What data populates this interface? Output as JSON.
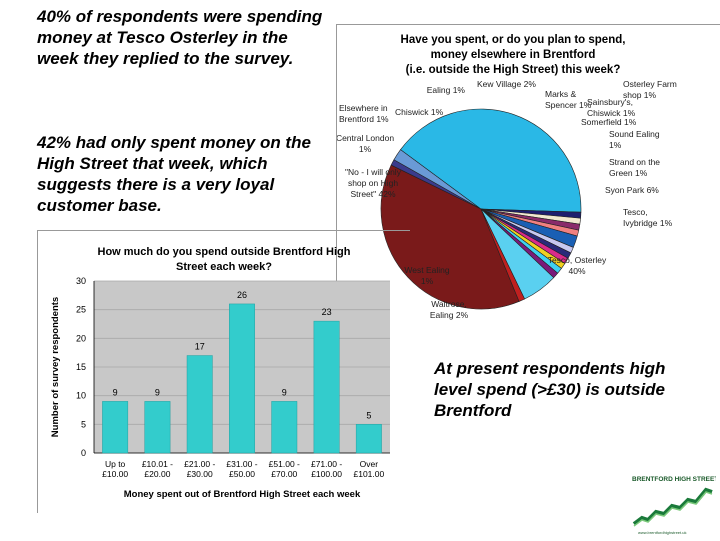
{
  "text_blocks": {
    "intro1": "40% of respondents were spending money at Tesco Osterley in the week they replied to the survey.",
    "intro2": "42% had only spent money on the High Street that week, which suggests there is a very loyal customer base.",
    "conclusion": "At present respondents high level spend (>£30) is outside Brentford"
  },
  "logo": {
    "text": "BRENTFORD HIGH STREET",
    "url": "www.brentfordhighstreet.uk"
  },
  "chart_data": [
    {
      "type": "pie",
      "title": [
        "Have you spent, or do you plan to spend,",
        "money elsewhere in Brentford",
        "(i.e. outside the High Street) this week?"
      ],
      "slices": [
        {
          "label": "Tesco, Osterley 40%",
          "value": 40,
          "color": "#7a1a1a"
        },
        {
          "label": "West Ealing 1%",
          "value": 1,
          "color": "#3b3b8c"
        },
        {
          "label": "Waitrose, Ealing 2%",
          "value": 2,
          "color": "#6a9ad6"
        },
        {
          "label": "\"No - I will only shop on High Street\" 42%",
          "value": 42,
          "color": "#2ab8e6"
        },
        {
          "label": "Central London 1%",
          "value": 1,
          "color": "#1e1e6e"
        },
        {
          "label": "Elsewhere in Brentford 1%",
          "value": 1,
          "color": "#f2e9d0"
        },
        {
          "label": "Chiswick 1%",
          "value": 1,
          "color": "#8a2b6a"
        },
        {
          "label": "Ealing 1%",
          "value": 1,
          "color": "#f08080"
        },
        {
          "label": "Kew Village 2%",
          "value": 2,
          "color": "#1a5fb4"
        },
        {
          "label": "Osterley Farm shop 1%",
          "value": 1,
          "color": "#c8c8f0"
        },
        {
          "label": "Marks & Spencer 1%",
          "value": 1,
          "color": "#2a2a7a"
        },
        {
          "label": "Sainsbury's, Chiswick 1%",
          "value": 1,
          "color": "#d92b8a"
        },
        {
          "label": "Somerfield 1%",
          "value": 1,
          "color": "#f0d020"
        },
        {
          "label": "Sound Ealing 1%",
          "value": 1,
          "color": "#40d0f0"
        },
        {
          "label": "Strand on the Green 1%",
          "value": 1,
          "color": "#7a1a7a"
        },
        {
          "label": "Syon Park 6%",
          "value": 6,
          "color": "#5ad0f0"
        },
        {
          "label": "Tesco, Ivybridge 1%",
          "value": 1,
          "color": "#c02020"
        }
      ],
      "labels": [
        {
          "lines": [
            "Ealing 1%"
          ]
        },
        {
          "lines": [
            "Kew Village 2%"
          ]
        },
        {
          "lines": [
            "Osterley Farm",
            "shop 1%"
          ]
        },
        {
          "lines": [
            "Marks &",
            "Spencer 1%"
          ]
        },
        {
          "lines": [
            "Sainsbury's,",
            "Chiswick 1%"
          ]
        },
        {
          "lines": [
            "Somerfield 1%"
          ]
        },
        {
          "lines": [
            "Elsewhere in",
            "Brentford 1%"
          ]
        },
        {
          "lines": [
            "Chiswick 1%"
          ]
        },
        {
          "lines": [
            "Central London",
            "1%"
          ]
        },
        {
          "lines": [
            "\"No - I will only",
            "shop on High",
            "Street\" 42%"
          ]
        },
        {
          "lines": [
            "Sound Ealing",
            "1%"
          ]
        },
        {
          "lines": [
            "Strand on the",
            "Green 1%"
          ]
        },
        {
          "lines": [
            "Syon Park 6%"
          ]
        },
        {
          "lines": [
            "Tesco,",
            "Ivybridge 1%"
          ]
        },
        {
          "lines": [
            "Tesco, Osterley",
            "40%"
          ]
        },
        {
          "lines": [
            "West Ealing",
            "1%"
          ]
        },
        {
          "lines": [
            "Waitrose,",
            "Ealing 2%"
          ]
        }
      ]
    },
    {
      "type": "bar",
      "title": [
        "How much do you spend outside Brentford High",
        "Street each week?"
      ],
      "xlabel": "Money spent out of Brentford High Street each week",
      "ylabel": "Number of survey respondents",
      "categories": [
        [
          "Up to",
          "£10.00"
        ],
        [
          "£10.01 -",
          "£20.00"
        ],
        [
          "£21.00 -",
          "£30.00"
        ],
        [
          "£31.00 -",
          "£50.00"
        ],
        [
          "£51.00 -",
          "£70.00"
        ],
        [
          "£71.00 -",
          "£100.00"
        ],
        [
          "Over",
          "£101.00"
        ]
      ],
      "values": [
        9,
        9,
        17,
        26,
        9,
        23,
        5
      ],
      "ylim": [
        0,
        30
      ],
      "yticks": [
        0,
        5,
        10,
        15,
        20,
        25,
        30
      ],
      "bar_color": "#33cccc",
      "plot_color": "#c8c8c8",
      "grid": true
    }
  ]
}
